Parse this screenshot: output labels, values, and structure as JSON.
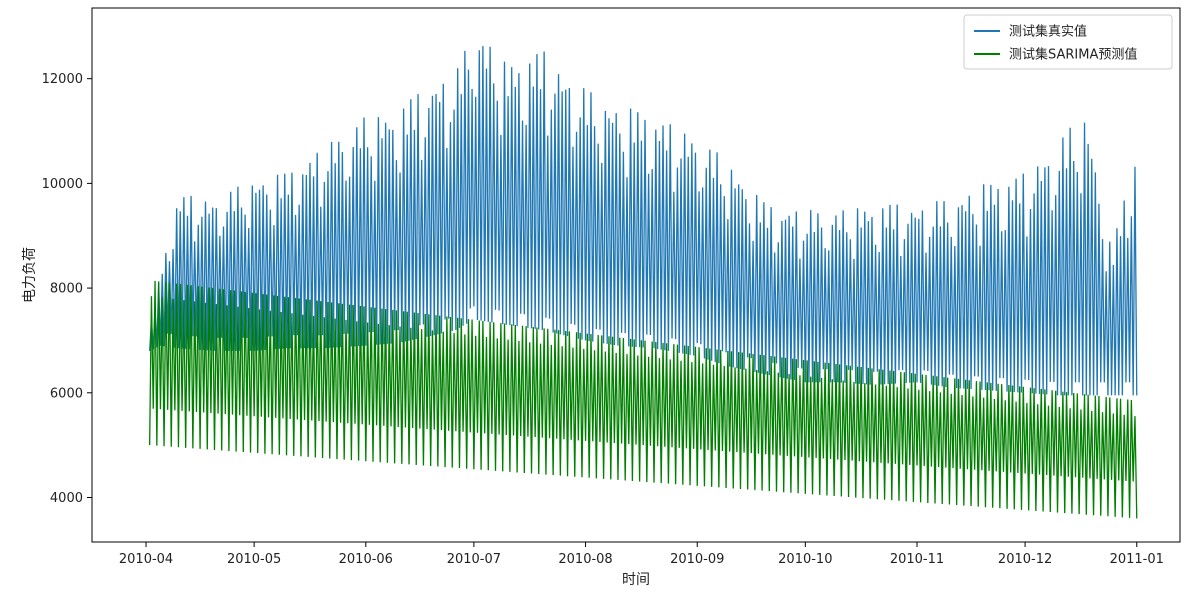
{
  "chart_data": {
    "type": "line",
    "xlabel": "时间",
    "ylabel": "电力负荷",
    "x_ticks": [
      "2010-04",
      "2010-05",
      "2010-06",
      "2010-07",
      "2010-08",
      "2010-09",
      "2010-10",
      "2010-11",
      "2010-12",
      "2011-01"
    ],
    "y_ticks": [
      4000,
      6000,
      8000,
      10000,
      12000
    ],
    "xlim": [
      "2010-03-17",
      "2011-01-13"
    ],
    "ylim": [
      3150,
      13350
    ],
    "legend_position": "top-right",
    "grid": false,
    "series": [
      {
        "name": "测试集真实值",
        "color": "#1f77b4",
        "start": "2010-04-02",
        "end": "2011-01-01",
        "envelope_dates": [
          "2010-04-02",
          "2010-04-05",
          "2010-04-10",
          "2010-04-20",
          "2010-05-01",
          "2010-05-10",
          "2010-05-20",
          "2010-06-01",
          "2010-06-10",
          "2010-06-20",
          "2010-06-26",
          "2010-07-01",
          "2010-07-10",
          "2010-07-20",
          "2010-08-01",
          "2010-08-10",
          "2010-08-20",
          "2010-09-01",
          "2010-09-10",
          "2010-09-20",
          "2010-10-01",
          "2010-10-10",
          "2010-10-20",
          "2010-11-01",
          "2010-11-10",
          "2010-11-20",
          "2010-12-01",
          "2010-12-10",
          "2010-12-18",
          "2010-12-25",
          "2011-01-01"
        ],
        "daily_peak": [
          7200,
          8300,
          9800,
          9700,
          10100,
          10200,
          10700,
          11300,
          11400,
          12000,
          12100,
          13100,
          12300,
          12550,
          11800,
          11500,
          11300,
          10900,
          10400,
          9600,
          9500,
          9500,
          9600,
          9600,
          9700,
          10000,
          10200,
          10800,
          11400,
          8700,
          10800
        ],
        "daily_trough": [
          6800,
          6900,
          6850,
          6800,
          6800,
          6850,
          6850,
          6900,
          6950,
          7100,
          7200,
          7400,
          7300,
          7200,
          7000,
          6900,
          6850,
          6700,
          6500,
          6350,
          6200,
          6200,
          6150,
          6200,
          6100,
          6050,
          6000,
          5950,
          5950,
          5950,
          5950
        ]
      },
      {
        "name": "测试集SARIMA预测值",
        "color": "#008000",
        "start": "2010-04-02",
        "end": "2011-01-01",
        "daily_peak_range": [
          8150,
          5850
        ],
        "daily_trough_range": [
          5000,
          3600
        ]
      }
    ]
  }
}
